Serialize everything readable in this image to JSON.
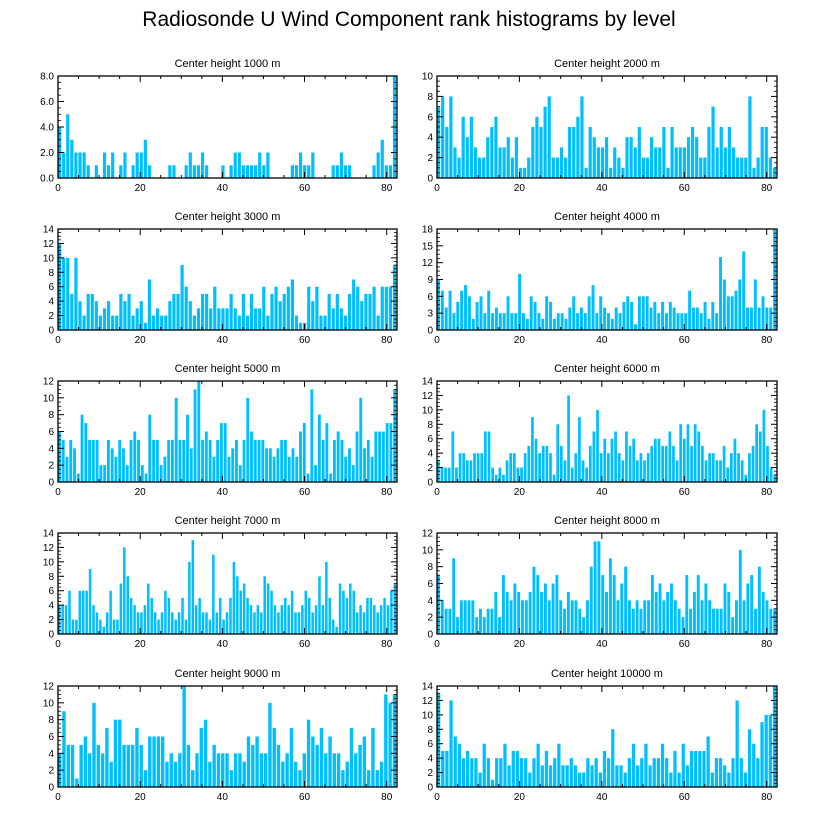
{
  "title": "Radiosonde U Wind Component rank histograms by level",
  "bar_color": "#00BFFF",
  "chart_data": [
    {
      "type": "bar",
      "title": "Center height 1000 m",
      "xticks": [
        0,
        20,
        40,
        60,
        80
      ],
      "yticks": [
        "0.0",
        "2.0",
        "4.0",
        "6.0",
        "8.0"
      ],
      "ylim": [
        0,
        8
      ],
      "values": [
        4,
        2,
        5,
        3,
        2,
        2,
        2,
        1,
        0,
        1,
        0,
        2,
        1,
        2,
        0,
        1,
        2,
        0,
        1,
        2,
        2,
        3,
        1,
        0,
        0,
        0,
        0,
        1,
        1,
        0,
        0,
        1,
        2,
        1,
        1,
        2,
        1,
        0,
        0,
        0,
        1,
        0,
        1,
        2,
        2,
        1,
        1,
        1,
        1,
        2,
        1,
        2,
        0,
        0,
        0,
        0,
        0,
        1,
        1,
        2,
        1,
        1,
        2,
        0,
        0,
        0,
        0,
        1,
        1,
        2,
        1,
        1,
        0,
        0,
        0,
        0,
        0,
        1,
        2,
        3,
        1,
        1,
        8
      ]
    },
    {
      "type": "bar",
      "title": "Center height 2000 m",
      "xticks": [
        0,
        20,
        40,
        60,
        80
      ],
      "yticks": [
        "0",
        "2",
        "4",
        "6",
        "8",
        "10"
      ],
      "ylim": [
        0,
        10
      ],
      "values": [
        7,
        8,
        5,
        8,
        3,
        2,
        6,
        4,
        6,
        3,
        2,
        2,
        4,
        5,
        6,
        3,
        3,
        4,
        2,
        4,
        1,
        1,
        2,
        5,
        6,
        5,
        7,
        8,
        2,
        2,
        3,
        2,
        5,
        5,
        6,
        8,
        1,
        5,
        4,
        3,
        3,
        4,
        1,
        3,
        2,
        1,
        4,
        4,
        3,
        5,
        2,
        2,
        4,
        3,
        3,
        5,
        1,
        5,
        3,
        3,
        3,
        4,
        5,
        4,
        2,
        2,
        5,
        7,
        3,
        5,
        3,
        5,
        3,
        2,
        2,
        2,
        8,
        1,
        2,
        5,
        5,
        2,
        1
      ]
    },
    {
      "type": "bar",
      "title": "Center height 3000 m",
      "xticks": [
        0,
        20,
        40,
        60,
        80
      ],
      "yticks": [
        "0",
        "2",
        "4",
        "6",
        "8",
        "10",
        "12",
        "14"
      ],
      "ylim": [
        0,
        14
      ],
      "values": [
        12,
        10,
        10,
        5,
        10,
        4,
        2,
        5,
        5,
        4,
        2,
        3,
        4,
        2,
        2,
        5,
        4,
        5,
        2,
        3,
        4,
        1,
        7,
        2,
        3,
        2,
        2,
        4,
        5,
        5,
        9,
        6,
        4,
        2,
        3,
        5,
        5,
        3,
        6,
        3,
        3,
        3,
        5,
        3,
        2,
        5,
        2,
        5,
        3,
        3,
        6,
        2,
        5,
        6,
        4,
        5,
        6,
        7,
        2,
        1,
        1,
        6,
        4,
        6,
        2,
        2,
        5,
        3,
        5,
        3,
        2,
        5,
        7,
        6,
        4,
        5,
        5,
        6,
        2,
        6,
        6,
        6,
        9
      ]
    },
    {
      "type": "bar",
      "title": "Center height 4000 m",
      "xticks": [
        0,
        20,
        40,
        60,
        80
      ],
      "yticks": [
        "0",
        "3",
        "6",
        "9",
        "12",
        "15",
        "18"
      ],
      "ylim": [
        0,
        18
      ],
      "values": [
        9,
        7,
        4,
        7,
        3,
        5,
        7,
        8,
        6,
        2,
        5,
        6,
        3,
        7,
        3,
        4,
        3,
        3,
        6,
        3,
        3,
        10,
        3,
        2,
        6,
        5,
        3,
        2,
        6,
        5,
        2,
        3,
        3,
        2,
        4,
        6,
        3,
        4,
        3,
        6,
        8,
        3,
        6,
        4,
        3,
        2,
        4,
        3,
        5,
        6,
        5,
        1,
        6,
        6,
        6,
        4,
        5,
        3,
        5,
        3,
        5,
        4,
        3,
        3,
        3,
        7,
        4,
        4,
        3,
        5,
        2,
        5,
        3,
        13,
        9,
        6,
        6,
        7,
        9,
        14,
        4,
        4,
        9,
        4,
        6,
        4,
        4,
        18
      ]
    },
    {
      "type": "bar",
      "title": "Center height 5000 m",
      "xticks": [
        0,
        20,
        40,
        60,
        80
      ],
      "yticks": [
        "0",
        "2",
        "4",
        "6",
        "8",
        "10",
        "12"
      ],
      "ylim": [
        0,
        12
      ],
      "values": [
        6,
        5,
        3,
        5,
        4,
        1,
        8,
        7,
        5,
        5,
        5,
        2,
        2,
        5,
        4,
        3,
        5,
        4,
        2,
        5,
        6,
        5,
        2,
        1,
        8,
        5,
        5,
        2,
        3,
        5,
        5,
        10,
        5,
        5,
        8,
        4,
        11,
        12,
        5,
        6,
        5,
        3,
        5,
        7,
        7,
        3,
        4,
        5,
        2,
        5,
        10,
        6,
        5,
        5,
        5,
        4,
        4,
        3,
        4,
        5,
        5,
        3,
        4,
        3,
        6,
        7,
        1,
        11,
        2,
        8,
        5,
        7,
        1,
        5,
        6,
        5,
        3,
        4,
        2,
        6,
        10,
        4,
        5,
        3,
        6,
        6,
        6,
        7,
        7,
        11
      ]
    },
    {
      "type": "bar",
      "title": "Center height 6000 m",
      "xticks": [
        0,
        20,
        40,
        60,
        80
      ],
      "yticks": [
        "0",
        "2",
        "4",
        "6",
        "8",
        "10",
        "12",
        "14"
      ],
      "ylim": [
        0,
        14
      ],
      "values": [
        3,
        2,
        2,
        2,
        7,
        2,
        4,
        4,
        3,
        3,
        4,
        4,
        4,
        7,
        7,
        2,
        1,
        2,
        1,
        3,
        4,
        4,
        2,
        2,
        4,
        5,
        9,
        6,
        4,
        5,
        5,
        4,
        1,
        8,
        5,
        3,
        12,
        2,
        4,
        9,
        3,
        2,
        5,
        7,
        10,
        4,
        6,
        4,
        6,
        7,
        4,
        3,
        7,
        5,
        6,
        3,
        4,
        3,
        4,
        5,
        6,
        6,
        5,
        5,
        7,
        5,
        3,
        8,
        6,
        8,
        5,
        8,
        7,
        5,
        3,
        4,
        4,
        3,
        3,
        5,
        2,
        4,
        6,
        4,
        3,
        1,
        4,
        5,
        8,
        7,
        10,
        5,
        2,
        1
      ]
    },
    {
      "type": "bar",
      "title": "Center height 7000 m",
      "xticks": [
        0,
        20,
        40,
        60,
        80
      ],
      "yticks": [
        "0",
        "2",
        "4",
        "6",
        "8",
        "10",
        "12",
        "14"
      ],
      "ylim": [
        0,
        14
      ],
      "values": [
        4,
        4,
        4,
        6,
        2,
        2,
        6,
        6,
        6,
        9,
        4,
        3,
        2,
        1,
        3,
        6,
        2,
        2,
        7,
        12,
        8,
        5,
        4,
        3,
        3,
        4,
        7,
        5,
        3,
        2,
        3,
        6,
        5,
        3,
        2,
        3,
        5,
        2,
        10,
        13,
        4,
        5,
        3,
        3,
        2,
        11,
        3,
        5,
        2,
        3,
        5,
        10,
        8,
        6,
        7,
        5,
        4,
        3,
        4,
        3,
        8,
        7,
        6,
        4,
        3,
        4,
        5,
        4,
        6,
        3,
        3,
        4,
        6,
        5,
        3,
        4,
        8,
        4,
        10,
        5,
        2,
        1,
        7,
        6,
        5,
        7,
        6,
        3,
        4,
        3,
        5,
        5,
        4,
        3,
        4,
        5,
        4,
        6,
        7
      ]
    },
    {
      "type": "bar",
      "title": "Center height 8000 m",
      "xticks": [
        0,
        20,
        40,
        60,
        80
      ],
      "yticks": [
        "0",
        "2",
        "4",
        "6",
        "8",
        "10",
        "12"
      ],
      "ylim": [
        0,
        12
      ],
      "values": [
        7,
        4,
        3,
        3,
        9,
        2,
        4,
        4,
        4,
        4,
        2,
        3,
        2,
        3,
        3,
        5,
        2,
        7,
        5,
        4,
        6,
        5,
        4,
        4,
        5,
        8,
        7,
        5,
        6,
        4,
        6,
        7,
        4,
        3,
        5,
        4,
        4,
        3,
        2,
        4,
        8,
        11,
        11,
        7,
        5,
        9,
        7,
        4,
        6,
        8,
        4,
        3,
        4,
        3,
        4,
        4,
        7,
        5,
        6,
        4,
        5,
        6,
        4,
        3,
        2,
        7,
        3,
        5,
        7,
        4,
        6,
        4,
        3,
        3,
        3,
        6,
        5,
        2,
        4,
        10,
        4,
        6,
        7,
        3,
        8,
        5,
        4,
        3,
        3
      ]
    },
    {
      "type": "bar",
      "title": "Center height 9000 m",
      "xticks": [
        0,
        20,
        40,
        60,
        80
      ],
      "yticks": [
        "0",
        "2",
        "4",
        "6",
        "8",
        "10",
        "12"
      ],
      "ylim": [
        0,
        12
      ],
      "values": [
        4,
        9,
        5,
        5,
        1,
        5,
        6,
        4,
        10,
        5,
        4,
        7,
        3,
        8,
        8,
        5,
        5,
        5,
        7,
        5,
        2,
        6,
        6,
        6,
        6,
        3,
        4,
        3,
        4,
        12,
        5,
        2,
        4,
        7,
        8,
        3,
        5,
        4,
        4,
        4,
        2,
        4,
        4,
        3,
        6,
        5,
        6,
        4,
        4,
        10,
        7,
        5,
        3,
        4,
        7,
        3,
        2,
        4,
        8,
        6,
        5,
        7,
        4,
        6,
        4,
        4,
        2,
        3,
        7,
        4,
        5,
        6,
        2,
        7,
        2,
        3,
        11,
        10,
        11
      ]
    },
    {
      "type": "bar",
      "title": "Center height 10000 m",
      "xticks": [
        0,
        20,
        40,
        60,
        80
      ],
      "yticks": [
        "0",
        "2",
        "4",
        "6",
        "8",
        "10",
        "12",
        "14"
      ],
      "ylim": [
        0,
        14
      ],
      "values": [
        13,
        5,
        5,
        12,
        7,
        6,
        4,
        5,
        4,
        4,
        2,
        6,
        4,
        1,
        4,
        4,
        6,
        3,
        5,
        5,
        4,
        4,
        2,
        4,
        6,
        3,
        5,
        3,
        4,
        6,
        3,
        3,
        4,
        3,
        2,
        2,
        4,
        3,
        4,
        2,
        5,
        4,
        8,
        3,
        3,
        2,
        4,
        6,
        3,
        4,
        6,
        3,
        4,
        4,
        6,
        4,
        2,
        5,
        2,
        6,
        3,
        5,
        5,
        5,
        5,
        7,
        2,
        4,
        4,
        3,
        2,
        4,
        12,
        4,
        2,
        8,
        6,
        4,
        9,
        10,
        10,
        14
      ]
    }
  ]
}
